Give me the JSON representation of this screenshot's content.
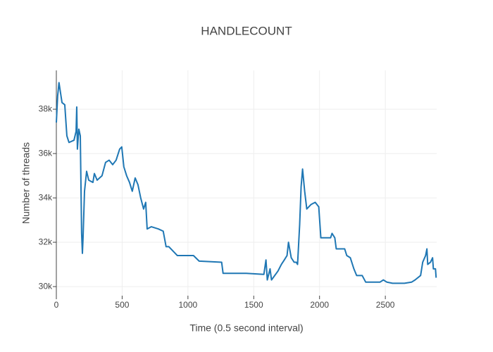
{
  "chart_data": {
    "type": "line",
    "title": "HANDLECOUNT",
    "x_label": "Time (0.5 second interval)",
    "y_label": "Number of threads",
    "xlim": [
      0,
      2890
    ],
    "ylim": [
      29590,
      39750
    ],
    "xticks": [
      0,
      500,
      1000,
      1500,
      2000,
      2500
    ],
    "yticks": [
      {
        "value": 30000,
        "label": "30k"
      },
      {
        "value": 32000,
        "label": "32k"
      },
      {
        "value": 34000,
        "label": "34k"
      },
      {
        "value": 36000,
        "label": "36k"
      },
      {
        "value": 38000,
        "label": "38k"
      }
    ],
    "grid": true,
    "series": [
      {
        "color": "#1f77b4",
        "x": [
          0,
          10,
          20,
          43,
          64,
          80,
          96,
          134,
          150,
          155,
          160,
          171,
          182,
          192,
          198,
          203,
          214,
          230,
          246,
          278,
          289,
          310,
          347,
          374,
          401,
          428,
          454,
          481,
          497,
          513,
          534,
          556,
          577,
          599,
          620,
          641,
          663,
          679,
          690,
          722,
          775,
          812,
          834,
          855,
          919,
          1042,
          1085,
          1256,
          1267,
          1443,
          1577,
          1593,
          1603,
          1624,
          1635,
          1684,
          1710,
          1732,
          1753,
          1764,
          1785,
          1807,
          1823,
          1833,
          1849,
          1860,
          1871,
          1887,
          1903,
          1935,
          1967,
          1994,
          2010,
          2084,
          2095,
          2116,
          2127,
          2191,
          2207,
          2234,
          2261,
          2282,
          2324,
          2351,
          2459,
          2485,
          2512,
          2555,
          2645,
          2699,
          2726,
          2768,
          2784,
          2806,
          2816,
          2822,
          2843,
          2859,
          2865,
          2881,
          2886
        ],
        "values": [
          37400,
          38600,
          39200,
          38300,
          38200,
          36800,
          36500,
          36600,
          37000,
          38100,
          36200,
          37100,
          36800,
          32400,
          31500,
          32200,
          34300,
          35200,
          34800,
          34700,
          35100,
          34800,
          35000,
          35600,
          35700,
          35500,
          35700,
          36200,
          36300,
          35400,
          35000,
          34700,
          34300,
          34900,
          34600,
          34000,
          33500,
          33800,
          32600,
          32700,
          32600,
          32500,
          31800,
          31800,
          31400,
          31400,
          31150,
          31100,
          30600,
          30600,
          30550,
          31200,
          30300,
          30800,
          30300,
          30700,
          31000,
          31200,
          31400,
          32000,
          31300,
          31100,
          31100,
          31000,
          32800,
          34500,
          35300,
          34300,
          33500,
          33700,
          33800,
          33600,
          32200,
          32200,
          32400,
          32200,
          31700,
          31700,
          31400,
          31300,
          30800,
          30500,
          30500,
          30200,
          30200,
          30300,
          30200,
          30150,
          30150,
          30200,
          30300,
          30500,
          31100,
          31400,
          31700,
          31000,
          31100,
          31300,
          30800,
          30800,
          30400
        ]
      }
    ]
  }
}
